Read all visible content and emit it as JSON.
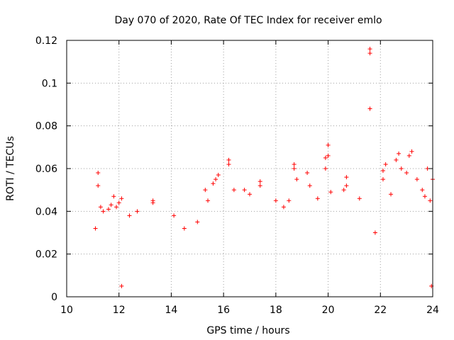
{
  "chart_data": {
    "type": "scatter",
    "title": "Day 070 of 2020, Rate Of TEC Index for receiver emlo",
    "xlabel": "GPS time / hours",
    "ylabel": "ROTI / TECUs",
    "xlim": [
      10,
      24
    ],
    "ylim": [
      0,
      0.12
    ],
    "xticks": [
      10,
      12,
      14,
      16,
      18,
      20,
      22,
      24
    ],
    "xtick_labels": [
      "10",
      "12",
      "14",
      "16",
      "18",
      "20",
      "22",
      "24"
    ],
    "yticks": [
      0,
      0.02,
      0.04,
      0.06,
      0.08,
      0.1,
      0.12
    ],
    "ytick_labels": [
      "0",
      "0.02",
      "0.04",
      "0.06",
      "0.08",
      "0.1",
      "0.12"
    ],
    "grid": true,
    "marker": "+",
    "colors": {
      "points": "#ff0000",
      "grid": "#a0a0a0",
      "axes": "#000000"
    },
    "series": [
      {
        "name": "emlo",
        "points": [
          [
            11.1,
            0.032
          ],
          [
            11.2,
            0.058
          ],
          [
            11.2,
            0.052
          ],
          [
            11.3,
            0.042
          ],
          [
            11.4,
            0.04
          ],
          [
            11.6,
            0.041
          ],
          [
            11.7,
            0.043
          ],
          [
            11.8,
            0.047
          ],
          [
            11.9,
            0.042
          ],
          [
            12.0,
            0.044
          ],
          [
            12.1,
            0.046
          ],
          [
            12.1,
            0.005
          ],
          [
            12.4,
            0.038
          ],
          [
            12.7,
            0.04
          ],
          [
            13.3,
            0.045
          ],
          [
            13.3,
            0.044
          ],
          [
            14.1,
            0.038
          ],
          [
            14.5,
            0.032
          ],
          [
            15.0,
            0.035
          ],
          [
            15.3,
            0.05
          ],
          [
            15.4,
            0.045
          ],
          [
            15.6,
            0.053
          ],
          [
            15.7,
            0.055
          ],
          [
            15.8,
            0.057
          ],
          [
            16.2,
            0.064
          ],
          [
            16.2,
            0.062
          ],
          [
            16.4,
            0.05
          ],
          [
            16.8,
            0.05
          ],
          [
            17.0,
            0.048
          ],
          [
            17.4,
            0.054
          ],
          [
            17.4,
            0.052
          ],
          [
            18.0,
            0.045
          ],
          [
            18.3,
            0.042
          ],
          [
            18.5,
            0.045
          ],
          [
            18.7,
            0.062
          ],
          [
            18.7,
            0.06
          ],
          [
            18.8,
            0.055
          ],
          [
            19.2,
            0.058
          ],
          [
            19.3,
            0.052
          ],
          [
            19.6,
            0.046
          ],
          [
            19.9,
            0.065
          ],
          [
            19.9,
            0.06
          ],
          [
            20.0,
            0.071
          ],
          [
            20.0,
            0.066
          ],
          [
            20.1,
            0.049
          ],
          [
            20.6,
            0.05
          ],
          [
            20.7,
            0.056
          ],
          [
            20.7,
            0.052
          ],
          [
            21.2,
            0.046
          ],
          [
            21.6,
            0.116
          ],
          [
            21.6,
            0.114
          ],
          [
            21.6,
            0.088
          ],
          [
            21.8,
            0.03
          ],
          [
            22.1,
            0.059
          ],
          [
            22.1,
            0.055
          ],
          [
            22.2,
            0.062
          ],
          [
            22.4,
            0.048
          ],
          [
            22.6,
            0.064
          ],
          [
            22.7,
            0.067
          ],
          [
            22.8,
            0.06
          ],
          [
            23.0,
            0.058
          ],
          [
            23.1,
            0.066
          ],
          [
            23.2,
            0.068
          ],
          [
            23.4,
            0.055
          ],
          [
            23.6,
            0.05
          ],
          [
            23.7,
            0.047
          ],
          [
            23.8,
            0.06
          ],
          [
            23.9,
            0.045
          ],
          [
            23.95,
            0.005
          ],
          [
            24.0,
            0.055
          ]
        ]
      }
    ]
  }
}
